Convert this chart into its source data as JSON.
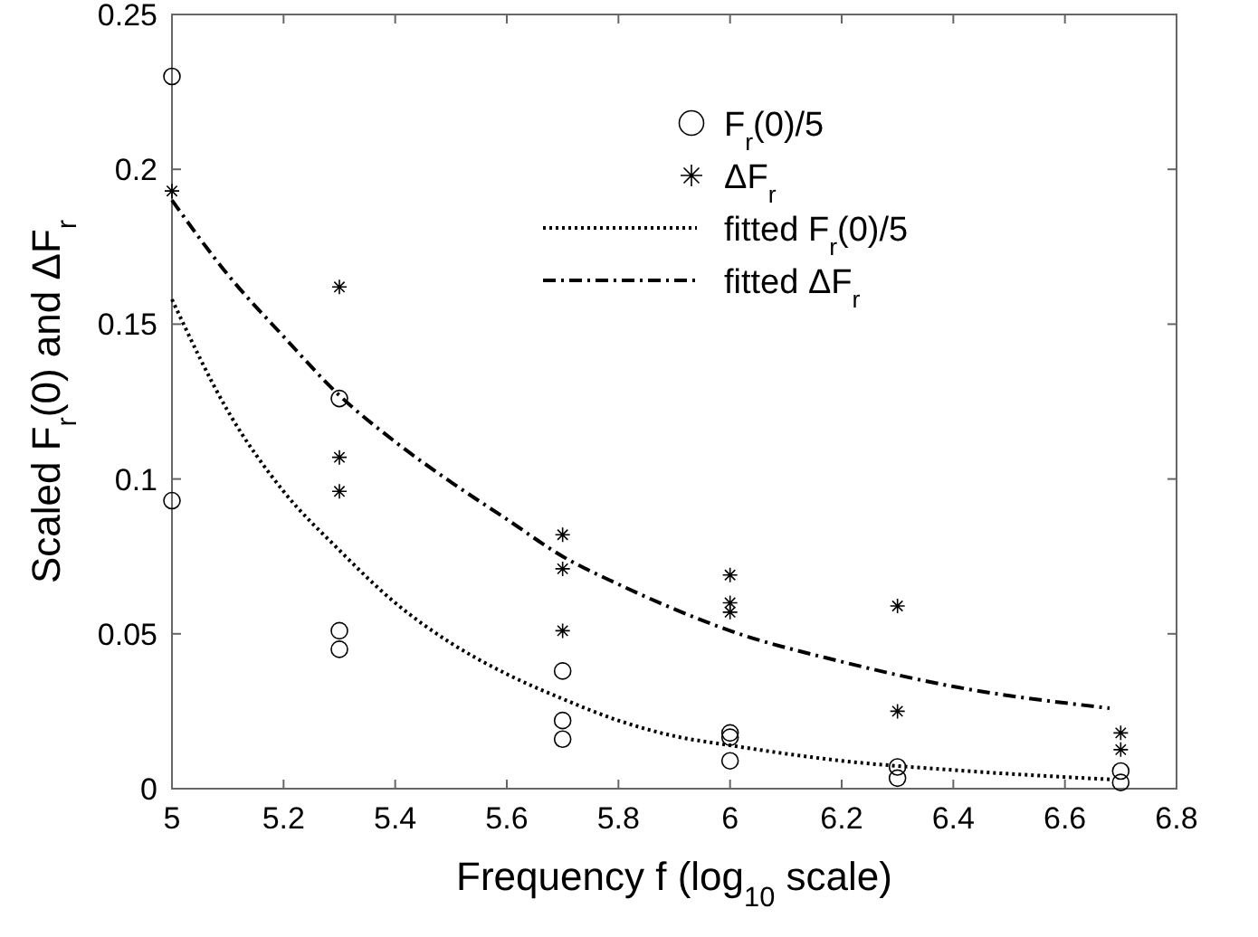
{
  "chart_data": {
    "type": "scatter",
    "xlabel": "Frequency f (log$_{10}$ scale)",
    "ylabel": "Scaled F$_{r}$(0) and ΔF$_{r}$",
    "xlim": [
      5,
      6.8
    ],
    "ylim": [
      0,
      0.25
    ],
    "xticks": [
      5,
      5.2,
      5.4,
      5.6,
      5.8,
      6,
      6.2,
      6.4,
      6.6,
      6.8
    ],
    "yticks": [
      0,
      0.05,
      0.1,
      0.15,
      0.2,
      0.25
    ],
    "grid": false,
    "legend": "top right",
    "series": [
      {
        "name": "F$_{r}$(0)/5",
        "marker": "circle",
        "color": "#000000",
        "x": [
          5,
          5,
          5.3,
          5.3,
          5.3,
          5.7,
          5.7,
          5.7,
          6,
          6,
          6,
          6.3,
          6.3,
          6.7,
          6.7
        ],
        "values": [
          0.23,
          0.093,
          0.126,
          0.051,
          0.045,
          0.038,
          0.022,
          0.016,
          0.018,
          0.0166,
          0.009,
          0.007,
          0.0034,
          0.0057,
          0.002
        ]
      },
      {
        "name": "ΔF$_{r}$",
        "marker": "cross",
        "color": "#000000",
        "x": [
          5,
          5.3,
          5.3,
          5.3,
          5.7,
          5.7,
          5.7,
          6,
          6,
          6,
          6.3,
          6.3,
          6.7,
          6.7
        ],
        "values": [
          0.193,
          0.162,
          0.107,
          0.096,
          0.082,
          0.071,
          0.051,
          0.069,
          0.06,
          0.057,
          0.059,
          0.025,
          0.018,
          0.0126
        ]
      },
      {
        "name": "fitted F$_{r}$(0)/5",
        "type": "line",
        "marker": "none",
        "line_style": "dotted",
        "color": "#000000",
        "x": [
          5,
          5.1,
          5.2,
          5.3,
          5.4,
          5.5,
          5.6,
          5.7,
          5.8,
          5.9,
          6,
          6.2,
          6.4,
          6.68
        ],
        "values": [
          0.158,
          0.122,
          0.096,
          0.077,
          0.06,
          0.047,
          0.037,
          0.029,
          0.022,
          0.017,
          0.014,
          0.009,
          0.006,
          0.003
        ]
      },
      {
        "name": "fitted ΔF$_{r}$",
        "type": "line",
        "marker": "none",
        "line_style": "dashdot",
        "color": "#000000",
        "x": [
          5,
          5.1,
          5.2,
          5.3,
          5.4,
          5.5,
          5.6,
          5.7,
          5.8,
          5.9,
          6,
          6.2,
          6.4,
          6.68
        ],
        "values": [
          0.19,
          0.166,
          0.146,
          0.127,
          0.112,
          0.099,
          0.087,
          0.075,
          0.066,
          0.058,
          0.051,
          0.041,
          0.033,
          0.026
        ]
      }
    ]
  }
}
